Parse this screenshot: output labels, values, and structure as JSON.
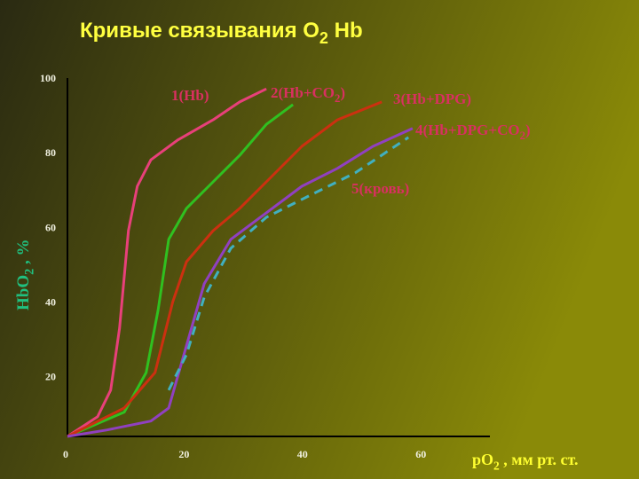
{
  "chart_data": {
    "type": "line",
    "title": [
      "Кривые связывания O",
      "2",
      " Hb"
    ],
    "x_label": [
      "pO",
      "2",
      " , мм рт. ст."
    ],
    "y_label": [
      "HbO",
      "2",
      " , %"
    ],
    "xlim": [
      0,
      71
    ],
    "ylim": [
      4,
      100
    ],
    "xticks": [
      0,
      20,
      40,
      60
    ],
    "yticks": [
      20,
      40,
      60,
      80,
      100
    ],
    "series": [
      {
        "name": [
          "1(Hb)"
        ],
        "color": "#e8407a",
        "dashed": false,
        "x": [
          0,
          5.1,
          7.3,
          8.8,
          10.3,
          11.8,
          14.1,
          18.6,
          24.6,
          29.1,
          33.6
        ],
        "values": [
          4,
          9.3,
          16.4,
          33,
          59.1,
          71,
          78.1,
          83.4,
          88.8,
          93.6,
          97.1
        ]
      },
      {
        "name": [
          "2(Hb+CO",
          "2",
          ")"
        ],
        "color": "#30c020",
        "dashed": false,
        "x": [
          0,
          9.6,
          13.3,
          15.3,
          17.1,
          20.1,
          24.6,
          29.1,
          33.6,
          38.1
        ],
        "values": [
          4,
          10.5,
          21.1,
          37.8,
          56.8,
          65.1,
          72.2,
          79.3,
          87.6,
          92.9
        ]
      },
      {
        "name": [
          "3(Hb+DPG)"
        ],
        "color": "#cc3010",
        "dashed": false,
        "x": [
          0,
          9.6,
          14.8,
          17.8,
          20.1,
          24.6,
          29.1,
          33.6,
          39.6,
          45.6,
          53.1
        ],
        "values": [
          4,
          11.6,
          21.1,
          40.1,
          50.8,
          59.1,
          65.1,
          72.2,
          81.7,
          88.8,
          93.6
        ]
      },
      {
        "name": [
          "4(Hb+DPG+CO",
          "2",
          ")"
        ],
        "color": "#9040c0",
        "dashed": false,
        "x": [
          0,
          6.6,
          14.1,
          17.1,
          20.1,
          23.1,
          27.6,
          33.6,
          39.6,
          45.6,
          51.6,
          58.3
        ],
        "values": [
          4,
          5.7,
          8.1,
          11.6,
          28.3,
          44.9,
          56.8,
          63.9,
          71,
          75.8,
          81.7,
          86.5
        ]
      },
      {
        "name": [
          "5(кровь)"
        ],
        "color": "#40b0c0",
        "dashed": true,
        "x": [
          17.1,
          20.1,
          23.1,
          27.6,
          33.6,
          39.6,
          48.6,
          57.6
        ],
        "values": [
          16.4,
          25.9,
          41.3,
          54.4,
          62.7,
          67.5,
          74.6,
          84.1
        ]
      }
    ]
  }
}
